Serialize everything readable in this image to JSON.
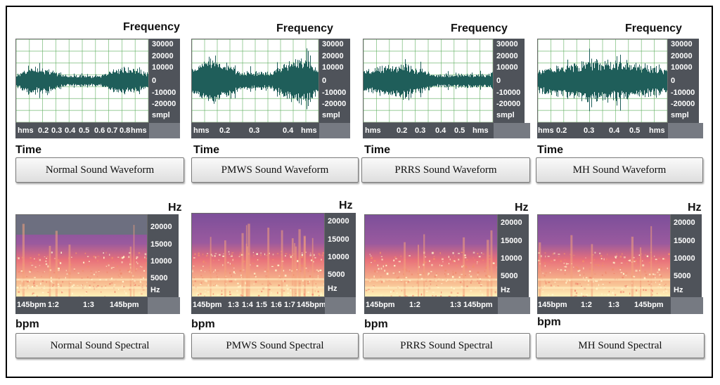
{
  "waveform_row": {
    "panels": [
      {
        "id": "normal",
        "title": "Frequency",
        "y_ticks": [
          "30000",
          "20000",
          "10000",
          "0",
          "-10000",
          "-20000",
          "smpl"
        ],
        "x_ticks": [
          "hms",
          "0.2",
          "0.3",
          "0.4",
          "0.5",
          "0.6",
          "0.7",
          "0.8",
          "hms"
        ],
        "x_label": "Time",
        "button": "Normal Sound Waveform",
        "amplitude": 0.55,
        "seed": 11
      },
      {
        "id": "pmws",
        "title": "Frequency",
        "y_ticks": [
          "30000",
          "20000",
          "10000",
          "0",
          "-10000",
          "-20000",
          "smpl"
        ],
        "x_ticks": [
          "hms",
          "0.2",
          "0.3",
          "0.4",
          "hms"
        ],
        "x_label": "Time",
        "button": "PMWS Sound Waveform",
        "amplitude": 0.95,
        "seed": 23
      },
      {
        "id": "prrs",
        "title": "Frequency",
        "y_ticks": [
          "30000",
          "20000",
          "10000",
          "0",
          "-10000",
          "-20000",
          "smpl"
        ],
        "x_ticks": [
          "hms",
          "0.2",
          "0.3",
          "0.4",
          "0.5",
          "hms"
        ],
        "x_label": "Time",
        "button": "PRRS Sound Waveform",
        "amplitude": 0.7,
        "seed": 37
      },
      {
        "id": "mh",
        "title": "Frequency",
        "y_ticks": [
          "30000",
          "20000",
          "10000",
          "0",
          "-10000",
          "-20000",
          "smpl"
        ],
        "x_ticks": [
          "hms",
          "0.2",
          "0.3",
          "0.4",
          "0.5",
          "hms"
        ],
        "x_label": "Time",
        "button": "MH Sound Waveform",
        "amplitude": 0.85,
        "seed": 51
      }
    ],
    "colors": {
      "wave": "#1f5e5a",
      "grid": "#55aa55",
      "axis_bg": "#4f535a"
    }
  },
  "spectral_row": {
    "panels": [
      {
        "id": "normal",
        "title": "Hz",
        "y_ticks": [
          "20000",
          "15000",
          "10000",
          "5000",
          "Hz"
        ],
        "x_ticks": [
          "145bpm",
          "1:2",
          "1:3",
          "145bpm"
        ],
        "x_label": "bpm",
        "button": "Normal Sound Spectral",
        "seed": 5
      },
      {
        "id": "pmws",
        "title": "Hz",
        "y_ticks": [
          "20000",
          "15000",
          "10000",
          "5000",
          "Hz"
        ],
        "x_ticks": [
          "145bpm",
          "1:3",
          "1:4",
          "1:5",
          "1:6",
          "1:7",
          "145bpm"
        ],
        "x_label": "bpm",
        "button": "PMWS Sound Spectral",
        "seed": 17
      },
      {
        "id": "prrs",
        "title": "Hz",
        "y_ticks": [
          "20000",
          "15000",
          "10000",
          "5000",
          "Hz"
        ],
        "x_ticks": [
          "145bpm",
          "1:2",
          "1:3",
          "145bpm"
        ],
        "x_label": "bpm",
        "button": "PRRS Sound Spectral",
        "seed": 29
      },
      {
        "id": "mh",
        "title": "Hz",
        "y_ticks": [
          "20000",
          "15000",
          "10000",
          "5000",
          "Hz"
        ],
        "x_ticks": [
          "145bpm",
          "1:2",
          "1:3",
          "145bpm"
        ],
        "x_label": "bpm",
        "button": "MH Sound Spectral",
        "seed": 43
      }
    ],
    "colors": {
      "low": "#fff1b8",
      "mid": "#e8707a",
      "high": "#7c4f9a"
    }
  }
}
